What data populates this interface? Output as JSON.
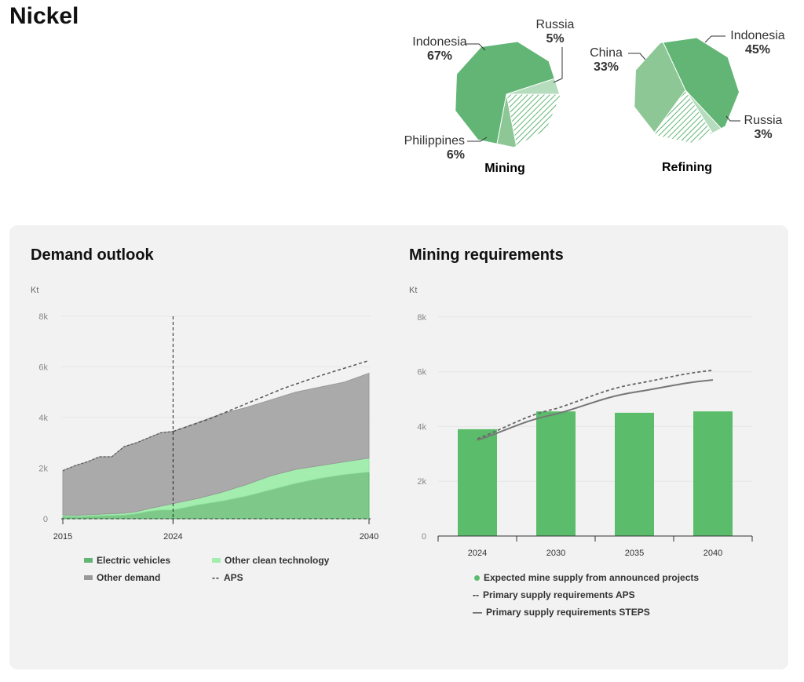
{
  "title": "Nickel",
  "colors": {
    "indonesia": "#62b575",
    "secondary": "#8cc795",
    "light": "#b5dcbc",
    "ev": "#7ec88a",
    "clean": "#a3eeae",
    "other": "#aaaaaa",
    "bar": "#5bbd6b"
  },
  "pies": [
    {
      "label": "Mining",
      "slices": [
        {
          "name": "Russia",
          "pct": 5,
          "value": "5%"
        },
        {
          "name": "Unlabeled",
          "pct": 22,
          "value": ""
        },
        {
          "name": "Philippines",
          "pct": 6,
          "value": "6%"
        },
        {
          "name": "Indonesia",
          "pct": 67,
          "value": "67%"
        }
      ]
    },
    {
      "label": "Refining",
      "slices": [
        {
          "name": "Indonesia",
          "pct": 45,
          "value": "45%"
        },
        {
          "name": "Russia",
          "pct": 3,
          "value": "3%"
        },
        {
          "name": "Unlabeled",
          "pct": 19,
          "value": ""
        },
        {
          "name": "China",
          "pct": 33,
          "value": "33%"
        }
      ]
    }
  ],
  "chart_data": [
    {
      "type": "area",
      "title": "Demand outlook",
      "ylabel": "Kt",
      "ylim": [
        0,
        8000
      ],
      "yticks": [
        "0",
        "2k",
        "4k",
        "6k",
        "8k"
      ],
      "xticks": [
        "2015",
        "2024",
        "2040"
      ],
      "x": [
        2015,
        2016,
        2017,
        2018,
        2019,
        2020,
        2021,
        2022,
        2023,
        2024,
        2026,
        2028,
        2030,
        2032,
        2034,
        2036,
        2038,
        2040
      ],
      "series": [
        {
          "name": "Electric vehicles",
          "values": [
            100,
            80,
            100,
            120,
            140,
            150,
            200,
            300,
            350,
            350,
            550,
            700,
            900,
            1150,
            1400,
            1600,
            1750,
            1850
          ]
        },
        {
          "name": "Other clean technology",
          "values": [
            50,
            50,
            60,
            60,
            60,
            70,
            80,
            100,
            150,
            250,
            250,
            350,
            450,
            550,
            550,
            500,
            500,
            550
          ]
        },
        {
          "name": "Other demand",
          "values": [
            1750,
            1970,
            2090,
            2270,
            2250,
            2630,
            2720,
            2800,
            2900,
            2850,
            3000,
            3100,
            3050,
            3000,
            3050,
            3100,
            3150,
            3350
          ]
        }
      ],
      "aps": {
        "name": "APS",
        "x": [
          2024,
          2027,
          2030,
          2033,
          2036,
          2040
        ],
        "values": [
          3450,
          3950,
          4550,
          5150,
          5650,
          6250
        ]
      },
      "legend": [
        "Electric vehicles",
        "Other clean technology",
        "Other demand",
        "APS"
      ]
    },
    {
      "type": "bar",
      "title": "Mining requirements",
      "ylabel": "Kt",
      "ylim": [
        0,
        8000
      ],
      "yticks": [
        "0",
        "2k",
        "4k",
        "6k",
        "8k"
      ],
      "categories": [
        "2024",
        "2030",
        "2035",
        "2040"
      ],
      "series": [
        {
          "name": "Expected mine supply from announced projects",
          "values": [
            3900,
            4550,
            4500,
            4550
          ]
        },
        {
          "name": "Primary supply requirements APS",
          "values": [
            3550,
            4650,
            5550,
            6050
          ]
        },
        {
          "name": "Primary supply requirements STEPS",
          "values": [
            3500,
            4450,
            5250,
            5700
          ]
        }
      ]
    }
  ]
}
